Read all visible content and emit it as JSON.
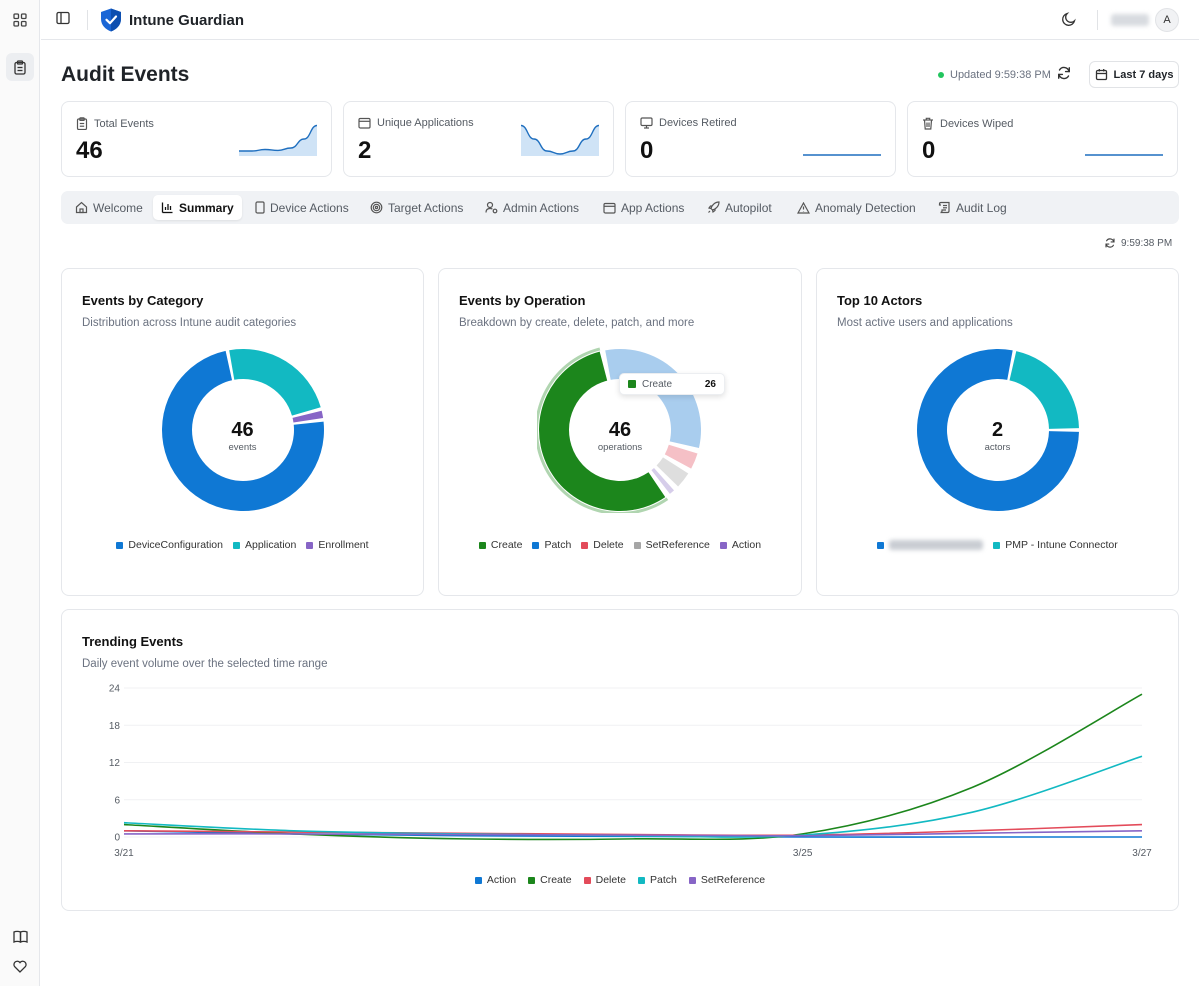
{
  "app": {
    "name": "Intune Guardian",
    "user_initial": "A"
  },
  "page": {
    "title": "Audit Events",
    "updated": "Updated 9:59:38 PM",
    "range": "Last 7 days",
    "refreshed_at": "9:59:38 PM"
  },
  "stats": [
    {
      "label": "Total Events",
      "value": "46",
      "icon": "clipboard-icon",
      "spark": [
        0.9,
        0.9,
        0.85,
        0.88,
        0.8,
        0.5,
        0.05
      ]
    },
    {
      "label": "Unique Applications",
      "value": "2",
      "icon": "window-icon",
      "spark": [
        0.05,
        0.5,
        0.9,
        1.0,
        0.9,
        0.5,
        0.05
      ]
    },
    {
      "label": "Devices Retired",
      "value": "0",
      "icon": "monitor-icon",
      "spark": [
        0,
        0,
        0,
        0,
        0,
        0,
        0
      ]
    },
    {
      "label": "Devices Wiped",
      "value": "0",
      "icon": "trash-icon",
      "spark": [
        0,
        0,
        0,
        0,
        0,
        0,
        0
      ]
    }
  ],
  "tabs": [
    {
      "label": "Welcome",
      "icon": "home-icon"
    },
    {
      "label": "Summary",
      "icon": "bar-chart-icon",
      "active": true
    },
    {
      "label": "Device Actions",
      "icon": "phone-icon"
    },
    {
      "label": "Target Actions",
      "icon": "target-icon"
    },
    {
      "label": "Admin Actions",
      "icon": "user-gear-icon"
    },
    {
      "label": "App Actions",
      "icon": "app-window-icon"
    },
    {
      "label": "Autopilot",
      "icon": "rocket-icon"
    },
    {
      "label": "Anomaly Detection",
      "icon": "warning-icon"
    },
    {
      "label": "Audit Log",
      "icon": "scroll-icon"
    }
  ],
  "cards": {
    "category": {
      "title": "Events by Category",
      "subtitle": "Distribution across Intune audit categories",
      "center_value": "46",
      "center_unit": "events",
      "legend": [
        {
          "name": "DeviceConfiguration",
          "color": "#0f78d4"
        },
        {
          "name": "Application",
          "color": "#12b9c2"
        },
        {
          "name": "Enrollment",
          "color": "#8765c6"
        }
      ]
    },
    "operation": {
      "title": "Events by Operation",
      "subtitle": "Breakdown by create, delete, patch, and more",
      "center_value": "46",
      "center_unit": "operations",
      "tooltip": {
        "name": "Create",
        "value": "26"
      },
      "legend": [
        {
          "name": "Create",
          "color": "#1c861c"
        },
        {
          "name": "Patch",
          "color": "#0f78d4"
        },
        {
          "name": "Delete",
          "color": "#e34b5a"
        },
        {
          "name": "SetReference",
          "color": "#a6a6a6"
        },
        {
          "name": "Action",
          "color": "#8765c6"
        }
      ]
    },
    "actors": {
      "title": "Top 10 Actors",
      "subtitle": "Most active users and applications",
      "center_value": "2",
      "center_unit": "actors",
      "legend": [
        {
          "name": "",
          "color": "#0f78d4"
        },
        {
          "name": "PMP - Intune Connector",
          "color": "#12b9c2"
        }
      ]
    }
  },
  "trend": {
    "title": "Trending Events",
    "subtitle": "Daily event volume over the selected time range"
  },
  "chart_data": [
    {
      "type": "pie",
      "labels": [
        "DeviceConfiguration",
        "Application",
        "Enrollment"
      ],
      "values": [
        34,
        11,
        1
      ],
      "total": 46
    },
    {
      "type": "pie",
      "labels": [
        "Create",
        "Patch",
        "Delete",
        "SetReference",
        "Action"
      ],
      "values": [
        26,
        15,
        2,
        2,
        1
      ],
      "total": 46
    },
    {
      "type": "pie",
      "labels": [
        "",
        "PMP - Intune Connector"
      ],
      "values": [
        36,
        10
      ],
      "total": 2
    },
    {
      "type": "line",
      "title": "Trending Events",
      "x": [
        "3/21",
        "3/22",
        "3/23",
        "3/24",
        "3/25",
        "3/26",
        "3/27"
      ],
      "x_ticks": [
        "3/21",
        "3/25",
        "3/27"
      ],
      "y_ticks": [
        "0",
        "6",
        "12",
        "18",
        "24"
      ],
      "ylim": [
        0,
        24
      ],
      "series": [
        {
          "name": "Action",
          "color": "#0f78d4",
          "values": [
            1,
            0.5,
            0.2,
            0.1,
            0,
            0,
            0
          ]
        },
        {
          "name": "Create",
          "color": "#1c861c",
          "values": [
            2,
            0.5,
            -0.3,
            -0.3,
            0.5,
            8,
            23
          ]
        },
        {
          "name": "Delete",
          "color": "#e34b5a",
          "values": [
            1,
            0.8,
            0.6,
            0.4,
            0.3,
            1,
            2
          ]
        },
        {
          "name": "Patch",
          "color": "#12b9c2",
          "values": [
            2.3,
            1,
            0.5,
            0.2,
            0.3,
            4,
            13
          ]
        },
        {
          "name": "SetReference",
          "color": "#8765c6",
          "values": [
            0.5,
            0.5,
            0.4,
            0.3,
            0.2,
            0.6,
            1
          ]
        }
      ]
    }
  ]
}
